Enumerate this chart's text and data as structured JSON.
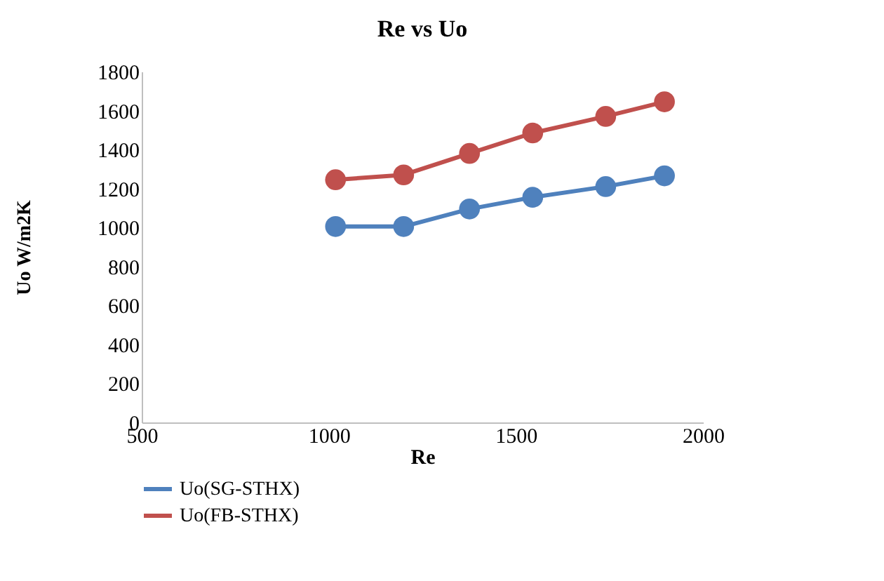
{
  "chart_data": {
    "type": "line",
    "title": "Re vs Uo",
    "xlabel": "Re",
    "ylabel": "Uo W/m2K",
    "x": [
      1018,
      1200,
      1376,
      1545,
      1740,
      1897
    ],
    "series": [
      {
        "name": "Uo(SG-STHX)",
        "color": "#4f81bd",
        "values": [
          1005,
          1005,
          1095,
          1155,
          1210,
          1265
        ]
      },
      {
        "name": "Uo(FB-STHX)",
        "color": "#c0504d",
        "values": [
          1245,
          1270,
          1380,
          1485,
          1570,
          1645
        ]
      }
    ],
    "xlim": [
      500,
      2000
    ],
    "xticks": [
      500,
      1000,
      1500,
      2000
    ],
    "ylim": [
      0,
      1800
    ],
    "yticks": [
      0,
      200,
      400,
      600,
      800,
      1000,
      1200,
      1400,
      1600,
      1800
    ],
    "grid": false,
    "legend": "bottom",
    "marker": "circle",
    "line_style": "solid"
  }
}
